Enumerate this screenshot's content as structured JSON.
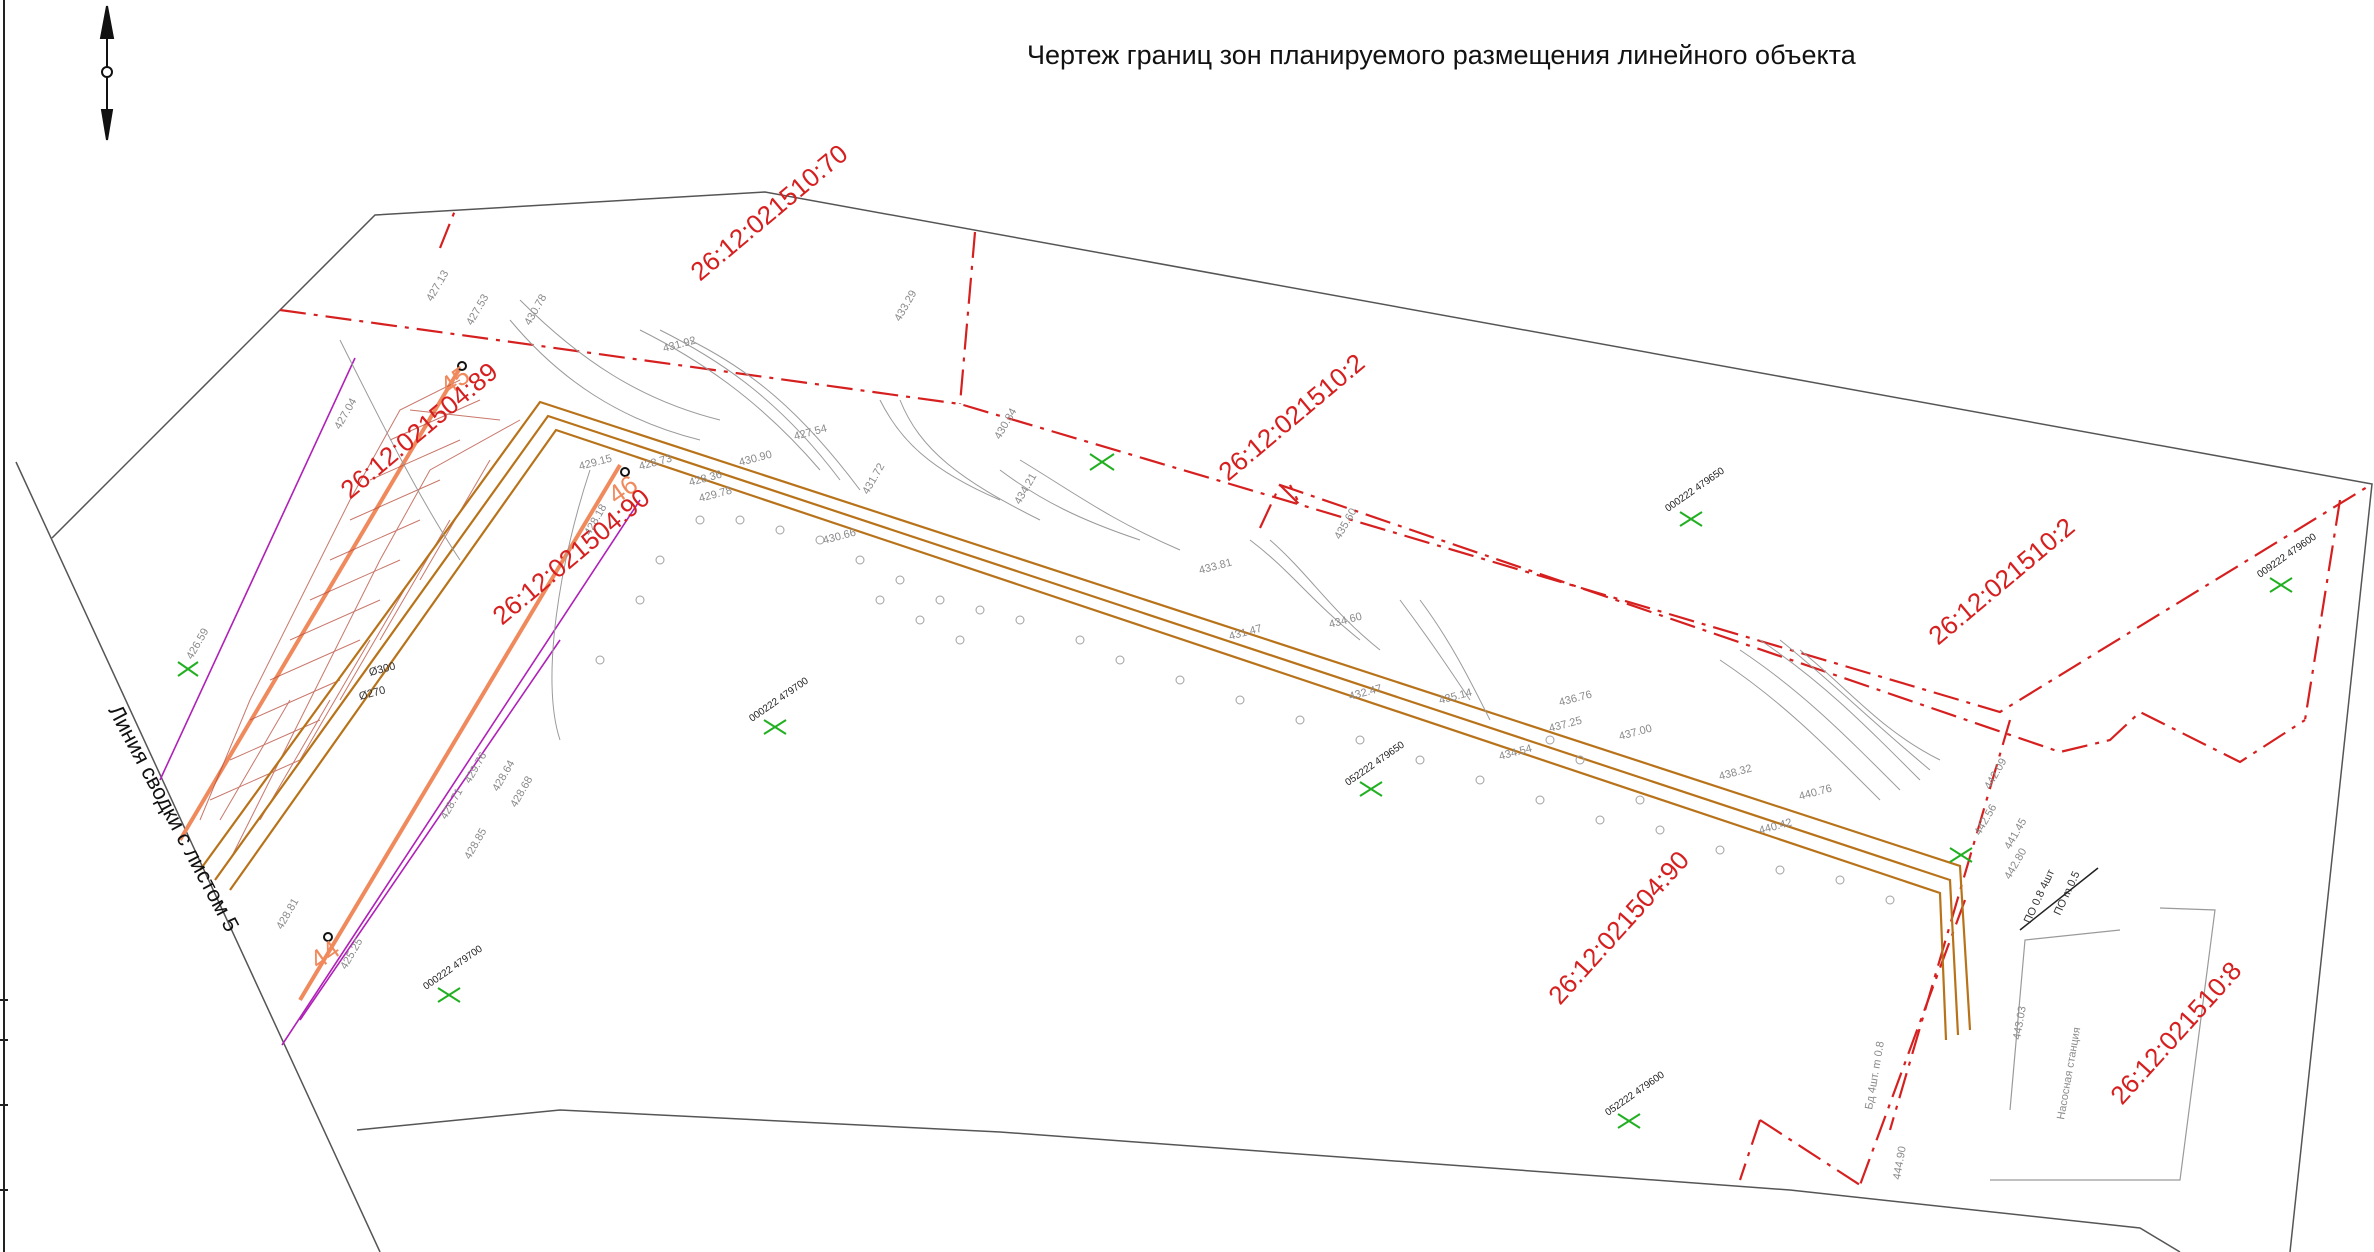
{
  "title": "Чертеж границ зон планируемого размещения линейного объекта",
  "summary_line_label": "Линия сводки с листом 5",
  "colors": {
    "boundary": "#d62020",
    "route": "#b8731a",
    "zone_line": "#b020b8",
    "picket": "#f08a5d",
    "grid_cross": "#22b022",
    "terrain": "#9a9a9a",
    "outline": "#333333"
  },
  "parcels": [
    {
      "id": "p1",
      "text": "26:12:021510:70"
    },
    {
      "id": "p2",
      "text": "26:12:021510:2"
    },
    {
      "id": "p3",
      "text": "26:12:021510:2"
    },
    {
      "id": "p4",
      "text": "26:12:021504:89"
    },
    {
      "id": "p5",
      "text": "26:12:021504:90"
    },
    {
      "id": "p6",
      "text": "26:12:021504:90"
    },
    {
      "id": "p7",
      "text": "26:12:021510:8"
    }
  ],
  "pickets": [
    {
      "id": "k45",
      "text": "45"
    },
    {
      "id": "k46",
      "text": "46"
    },
    {
      "id": "k44",
      "text": "44"
    }
  ],
  "grid_marks": [
    {
      "id": "g1",
      "text": "000222 479650"
    },
    {
      "id": "g2",
      "text": "009222 479600"
    },
    {
      "id": "g3",
      "text": "000222 479700"
    },
    {
      "id": "g4",
      "text": "052222 479650"
    },
    {
      "id": "g5",
      "text": "000222 479700"
    },
    {
      "id": "g6",
      "text": "052222 479600"
    }
  ],
  "elevations": [
    "427.13",
    "427.53",
    "430.78",
    "433.29",
    "431.92",
    "427.54",
    "430.84",
    "434.21",
    "430.90",
    "428.36",
    "431.72",
    "430.66",
    "433.81",
    "434.60",
    "435.60",
    "431.47",
    "429.15",
    "428.73",
    "429.78",
    "432.47",
    "435.14",
    "434.54",
    "436.76",
    "437.25",
    "437.00",
    "438.32",
    "440.76",
    "440.42",
    "442.09",
    "442.56",
    "441.45",
    "442.80",
    "443.03",
    "444.90",
    "429.76",
    "428.64",
    "428.68",
    "428.85",
    "428.71",
    "428.81",
    "427.04",
    "426.59",
    "425.25",
    "428.18"
  ],
  "annotations": {
    "a1": "ПО 0.8  4шт",
    "a2": "ПО m 0.5",
    "a3": "Ø300",
    "a4": "Ø270",
    "a5": "Бд 4шт. m 0.8",
    "a6": "Насосная станция"
  }
}
